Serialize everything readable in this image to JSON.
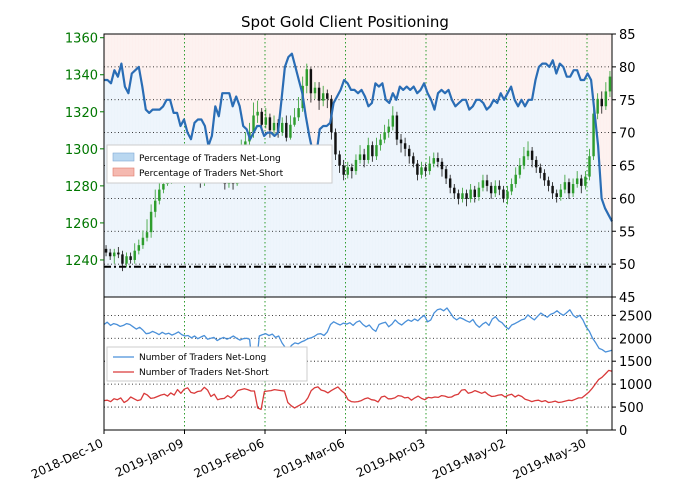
{
  "chart_data": [
    {
      "type": "line",
      "title": "Spot Gold Client Positioning",
      "panel": "top",
      "left_axis": {
        "ticks": [
          1240,
          1260,
          1280,
          1300,
          1320,
          1340,
          1360
        ],
        "ylim": [
          1220,
          1362
        ],
        "color": "#007700"
      },
      "right_axis": {
        "ticks": [
          45,
          50,
          55,
          60,
          65,
          70,
          75,
          80,
          85
        ],
        "ylim": [
          45,
          85
        ]
      },
      "x_ticks": [
        "2018-Dec-10",
        "2019-Jan-09",
        "2019-Feb-06",
        "2019-Mar-06",
        "2019-Apr-03",
        "2019-May-02",
        "2019-May-30"
      ],
      "legend": {
        "placement": "left",
        "entries": [
          {
            "label": "Percentage of Traders Net-Long",
            "color": "#b9d7f0"
          },
          {
            "label": "Percentage of Traders Net-Short",
            "color": "#f5b9b0"
          }
        ]
      },
      "reference_line": 49.6,
      "percentage_net_long": [
        78,
        78,
        77.5,
        79.5,
        78.5,
        80.5,
        77,
        76,
        79,
        79.5,
        80,
        77,
        73.5,
        73,
        73.5,
        73.5,
        73.5,
        74,
        75,
        75,
        73,
        73,
        71,
        72,
        70,
        69,
        71.5,
        72,
        72,
        71,
        68,
        69.5,
        74,
        72.5,
        76,
        76,
        76,
        74,
        75.5,
        74,
        71,
        70.5,
        69,
        70,
        71,
        71,
        69.5,
        70,
        70,
        69.5,
        70,
        75,
        80,
        81.5,
        82,
        80,
        78,
        76,
        72.5,
        69.5,
        67,
        66.5,
        70.5,
        71,
        71,
        71.5,
        74.5,
        75.5,
        76.5,
        78,
        77.5,
        76.5,
        76.5,
        76,
        76.5,
        75.5,
        74,
        74.5,
        77.5,
        77,
        77.5,
        75,
        74.5,
        76,
        75,
        77,
        76.5,
        77,
        76.5,
        77,
        76,
        76.5,
        77.5,
        76,
        75,
        73.5,
        76,
        76.5,
        76,
        76.5,
        75,
        74,
        74.5,
        75,
        75,
        73.5,
        74,
        75,
        75,
        74.5,
        73.5,
        74,
        75,
        74.5,
        76,
        75,
        76,
        77,
        75,
        74,
        75,
        74,
        75,
        75,
        78,
        80,
        80.5,
        80.5,
        80,
        81,
        79,
        80.5,
        80,
        78.5,
        78.5,
        79.5,
        79.5,
        78,
        78,
        79,
        78,
        73,
        68,
        60,
        58.5,
        57.5,
        56.5
      ],
      "price_candles": [
        [
          1246,
          1244,
          1248,
          1242
        ],
        [
          1244,
          1242,
          1246,
          1240
        ],
        [
          1242,
          1244,
          1246,
          1238
        ],
        [
          1244,
          1243,
          1247,
          1241
        ],
        [
          1243,
          1238,
          1245,
          1234
        ],
        [
          1238,
          1242,
          1244,
          1236
        ],
        [
          1242,
          1240,
          1244,
          1238
        ],
        [
          1240,
          1245,
          1249,
          1238
        ],
        [
          1245,
          1248,
          1251,
          1243
        ],
        [
          1248,
          1252,
          1256,
          1246
        ],
        [
          1252,
          1255,
          1262,
          1250
        ],
        [
          1255,
          1266,
          1270,
          1252
        ],
        [
          1266,
          1272,
          1278,
          1263
        ],
        [
          1272,
          1278,
          1282,
          1270
        ],
        [
          1278,
          1281,
          1284,
          1276
        ],
        [
          1281,
          1283,
          1288,
          1280
        ],
        [
          1283,
          1289,
          1294,
          1281
        ],
        [
          1289,
          1292,
          1297,
          1286
        ],
        [
          1292,
          1287,
          1294,
          1284
        ],
        [
          1287,
          1291,
          1294,
          1283
        ],
        [
          1291,
          1287,
          1293,
          1282
        ],
        [
          1287,
          1292,
          1295,
          1285
        ],
        [
          1292,
          1290,
          1296,
          1285
        ],
        [
          1290,
          1283,
          1292,
          1279
        ],
        [
          1283,
          1286,
          1290,
          1280
        ],
        [
          1286,
          1291,
          1295,
          1284
        ],
        [
          1291,
          1295,
          1300,
          1289
        ],
        [
          1295,
          1290,
          1297,
          1285
        ],
        [
          1290,
          1286,
          1292,
          1283
        ],
        [
          1286,
          1281,
          1288,
          1278
        ],
        [
          1281,
          1285,
          1288,
          1279
        ],
        [
          1285,
          1281,
          1288,
          1278
        ],
        [
          1281,
          1289,
          1293,
          1280
        ],
        [
          1289,
          1300,
          1305,
          1287
        ],
        [
          1300,
          1304,
          1309,
          1298
        ],
        [
          1304,
          1309,
          1314,
          1302
        ],
        [
          1309,
          1318,
          1325,
          1306
        ],
        [
          1318,
          1320,
          1326,
          1314
        ],
        [
          1320,
          1313,
          1322,
          1310
        ],
        [
          1313,
          1317,
          1322,
          1311
        ],
        [
          1317,
          1310,
          1319,
          1306
        ],
        [
          1310,
          1314,
          1318,
          1308
        ],
        [
          1314,
          1309,
          1316,
          1306
        ],
        [
          1309,
          1314,
          1317,
          1307
        ],
        [
          1314,
          1306,
          1318,
          1304
        ],
        [
          1306,
          1313,
          1318,
          1305
        ],
        [
          1313,
          1317,
          1322,
          1312
        ],
        [
          1317,
          1322,
          1328,
          1315
        ],
        [
          1322,
          1334,
          1339,
          1320
        ],
        [
          1334,
          1343,
          1346,
          1330
        ],
        [
          1343,
          1330,
          1344,
          1325
        ],
        [
          1330,
          1333,
          1336,
          1327
        ],
        [
          1333,
          1326,
          1336,
          1321
        ],
        [
          1326,
          1330,
          1334,
          1323
        ],
        [
          1330,
          1327,
          1332,
          1322
        ],
        [
          1327,
          1309,
          1329,
          1305
        ],
        [
          1309,
          1297,
          1311,
          1294
        ],
        [
          1297,
          1291,
          1299,
          1287
        ],
        [
          1291,
          1286,
          1294,
          1283
        ],
        [
          1286,
          1290,
          1293,
          1284
        ],
        [
          1290,
          1288,
          1292,
          1284
        ],
        [
          1288,
          1294,
          1297,
          1286
        ],
        [
          1294,
          1297,
          1302,
          1292
        ],
        [
          1297,
          1294,
          1300,
          1290
        ],
        [
          1294,
          1302,
          1306,
          1292
        ],
        [
          1302,
          1296,
          1304,
          1293
        ],
        [
          1296,
          1302,
          1306,
          1294
        ],
        [
          1302,
          1305,
          1308,
          1299
        ],
        [
          1305,
          1309,
          1313,
          1303
        ],
        [
          1309,
          1312,
          1316,
          1306
        ],
        [
          1312,
          1318,
          1323,
          1310
        ],
        [
          1318,
          1305,
          1320,
          1302
        ],
        [
          1305,
          1303,
          1308,
          1298
        ],
        [
          1303,
          1300,
          1306,
          1296
        ],
        [
          1300,
          1296,
          1302,
          1292
        ],
        [
          1296,
          1292,
          1298,
          1290
        ],
        [
          1292,
          1286,
          1294,
          1283
        ],
        [
          1286,
          1290,
          1293,
          1284
        ],
        [
          1290,
          1288,
          1292,
          1285
        ],
        [
          1288,
          1292,
          1296,
          1286
        ],
        [
          1292,
          1295,
          1298,
          1290
        ],
        [
          1295,
          1293,
          1298,
          1290
        ],
        [
          1293,
          1289,
          1295,
          1285
        ],
        [
          1289,
          1284,
          1291,
          1281
        ],
        [
          1284,
          1279,
          1286,
          1276
        ],
        [
          1279,
          1276,
          1281,
          1273
        ],
        [
          1276,
          1273,
          1278,
          1270
        ],
        [
          1273,
          1276,
          1279,
          1271
        ],
        [
          1276,
          1273,
          1278,
          1269
        ],
        [
          1273,
          1278,
          1281,
          1271
        ],
        [
          1278,
          1274,
          1280,
          1271
        ],
        [
          1274,
          1279,
          1282,
          1272
        ],
        [
          1279,
          1283,
          1286,
          1277
        ],
        [
          1283,
          1280,
          1286,
          1277
        ],
        [
          1280,
          1276,
          1282,
          1273
        ],
        [
          1276,
          1280,
          1283,
          1274
        ],
        [
          1280,
          1278,
          1283,
          1275
        ],
        [
          1278,
          1273,
          1280,
          1271
        ],
        [
          1273,
          1277,
          1280,
          1270
        ],
        [
          1277,
          1281,
          1284,
          1275
        ],
        [
          1281,
          1286,
          1290,
          1279
        ],
        [
          1286,
          1291,
          1295,
          1284
        ],
        [
          1291,
          1296,
          1301,
          1289
        ],
        [
          1296,
          1299,
          1304,
          1294
        ],
        [
          1299,
          1294,
          1301,
          1290
        ],
        [
          1294,
          1290,
          1296,
          1287
        ],
        [
          1290,
          1287,
          1292,
          1284
        ],
        [
          1287,
          1283,
          1289,
          1280
        ],
        [
          1283,
          1280,
          1285,
          1277
        ],
        [
          1280,
          1276,
          1282,
          1273
        ],
        [
          1276,
          1274,
          1278,
          1271
        ],
        [
          1274,
          1278,
          1281,
          1272
        ],
        [
          1278,
          1282,
          1286,
          1276
        ],
        [
          1282,
          1276,
          1284,
          1273
        ],
        [
          1276,
          1281,
          1284,
          1274
        ],
        [
          1281,
          1284,
          1288,
          1279
        ],
        [
          1284,
          1280,
          1286,
          1276
        ],
        [
          1280,
          1285,
          1288,
          1278
        ],
        [
          1285,
          1296,
          1300,
          1283
        ],
        [
          1296,
          1319,
          1323,
          1294
        ],
        [
          1319,
          1327,
          1330,
          1316
        ],
        [
          1327,
          1323,
          1331,
          1319
        ],
        [
          1323,
          1331,
          1336,
          1321
        ],
        [
          1331,
          1339,
          1342,
          1328
        ]
      ]
    },
    {
      "type": "line",
      "panel": "bottom",
      "right_axis": {
        "ticks": [
          0,
          500,
          1000,
          1500,
          2000,
          2500
        ],
        "ylim": [
          0,
          2900
        ]
      },
      "legend": {
        "placement": "left",
        "entries": [
          {
            "label": "Number of Traders Net-Long",
            "color": "#4a90d9"
          },
          {
            "label": "Number of Traders Net-Short",
            "color": "#d93a3a"
          }
        ]
      },
      "series": [
        {
          "name": "Number of Traders Net-Long",
          "color": "#4a90d9",
          "values": [
            2300,
            2350,
            2280,
            2320,
            2300,
            2260,
            2280,
            2320,
            2300,
            2250,
            2200,
            2240,
            2180,
            2100,
            2110,
            2150,
            2120,
            2080,
            2130,
            2090,
            2110,
            2070,
            2100,
            2140,
            2080,
            2050,
            2060,
            2010,
            2050,
            1990,
            2030,
            2060,
            1980,
            2000,
            2020,
            1950,
            1990,
            2020,
            1980,
            2010,
            2050,
            2000,
            1960,
            1990,
            2000,
            1980,
            1300,
            1350,
            2050,
            2080,
            2100,
            2060,
            2090,
            2020,
            2050,
            1900,
            1800,
            1760,
            1850,
            1900,
            1880,
            1920,
            1950,
            1990,
            2010,
            2040,
            2090,
            2100,
            2060,
            2140,
            2300,
            2360,
            2320,
            2290,
            2330,
            2310,
            2340,
            2280,
            2350,
            2380,
            2300,
            2250,
            2290,
            2200,
            2150,
            2300,
            2330,
            2350,
            2250,
            2310,
            2400,
            2330,
            2290,
            2350,
            2400,
            2370,
            2420,
            2380,
            2450,
            2500,
            2360,
            2400,
            2550,
            2620,
            2640,
            2600,
            2660,
            2560,
            2450,
            2400,
            2450,
            2420,
            2380,
            2350,
            2410,
            2300,
            2240,
            2310,
            2350,
            2280,
            2420,
            2470,
            2380,
            2340,
            2260,
            2200,
            2290,
            2320,
            2360,
            2400,
            2420,
            2510,
            2450,
            2400,
            2480,
            2550,
            2500,
            2460,
            2520,
            2550,
            2600,
            2540,
            2500,
            2560,
            2620,
            2500,
            2450,
            2500,
            2400,
            2250,
            2150,
            2000,
            1900,
            1780,
            1750,
            1700,
            1720,
            1740
          ]
        },
        {
          "name": "Number of Traders Net-Short",
          "color": "#d93a3a",
          "values": [
            640,
            650,
            620,
            680,
            660,
            700,
            600,
            640,
            720,
            680,
            640,
            660,
            800,
            760,
            690,
            700,
            730,
            760,
            780,
            740,
            810,
            760,
            880,
            800,
            890,
            920,
            820,
            800,
            840,
            850,
            930,
            870,
            730,
            780,
            660,
            680,
            690,
            750,
            700,
            760,
            860,
            880,
            900,
            880,
            850,
            850,
            480,
            450,
            840,
            850,
            860,
            880,
            870,
            860,
            850,
            600,
            530,
            480,
            520,
            560,
            600,
            700,
            860,
            920,
            940,
            870,
            850,
            810,
            860,
            900,
            940,
            860,
            800,
            660,
            620,
            610,
            620,
            640,
            680,
            700,
            660,
            650,
            610,
            720,
            740,
            680,
            680,
            700,
            750,
            740,
            700,
            710,
            650,
            700,
            740,
            690,
            660,
            710,
            700,
            720,
            710,
            750,
            740,
            710,
            720,
            760,
            780,
            870,
            880,
            800,
            820,
            860,
            830,
            800,
            830,
            770,
            730,
            740,
            760,
            770,
            720,
            760,
            780,
            720,
            760,
            730,
            670,
            650,
            620,
            640,
            650,
            620,
            640,
            600,
            610,
            630,
            600,
            610,
            630,
            650,
            640,
            670,
            700,
            700,
            760,
            820,
            900,
            1000,
            1100,
            1150,
            1220,
            1300,
            1280
          ]
        }
      ]
    }
  ]
}
